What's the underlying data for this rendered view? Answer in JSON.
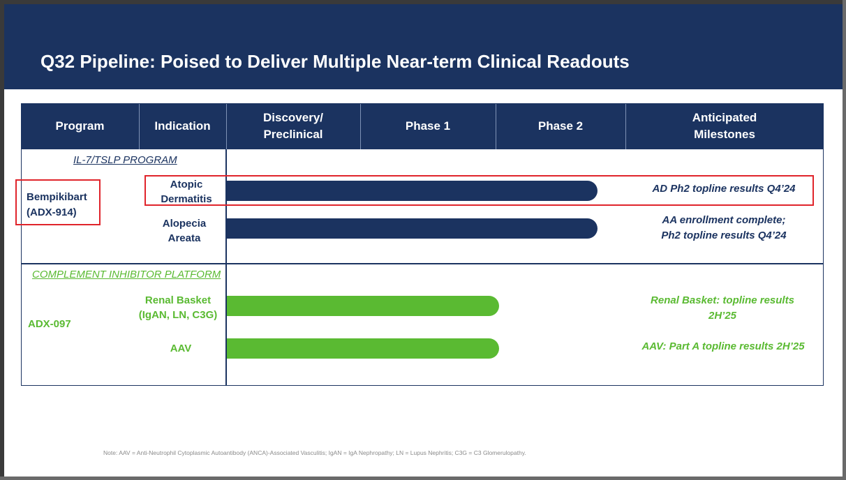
{
  "slide": {
    "title": "Q32 Pipeline: Poised to Deliver Multiple Near-term Clinical Readouts"
  },
  "table": {
    "columns": [
      "Program",
      "Indication",
      "Discovery/\nPreclinical",
      "Phase 1",
      "Phase 2",
      "Anticipated\nMilestones"
    ],
    "sections": [
      {
        "label": "IL-7/TSLP PROGRAM",
        "program": "Bempikibart\n(ADX-914)",
        "rows": [
          {
            "indication": "Atopic\nDermatitis",
            "stage_reached": "Phase 2",
            "milestone": "AD Ph2 topline results Q4’24"
          },
          {
            "indication": "Alopecia\nAreata",
            "stage_reached": "Phase 2",
            "milestone": "AA enrollment complete;\nPh2 topline results Q4’24"
          }
        ]
      },
      {
        "label": "COMPLEMENT INHIBITOR PLATFORM",
        "program": "ADX-097",
        "rows": [
          {
            "indication": "Renal Basket\n(IgAN, LN, C3G)",
            "stage_reached": "Phase 1",
            "milestone": "Renal Basket: topline results\n2H’25"
          },
          {
            "indication": "AAV",
            "stage_reached": "Phase 1",
            "milestone": "AAV: Part A topline results 2H’25"
          }
        ]
      }
    ]
  },
  "colors": {
    "navy": "#1b3360",
    "green": "#5aba32",
    "highlight_red": "#e0242b"
  },
  "footnote": "Note: AAV = Anti-Neutrophil Cytoplasmic Autoantibody (ANCA)-Associated Vasculitis; IgAN =  IgA Nephropathy; LN = Lupus Nephritis; C3G = C3 Glomerulopathy."
}
